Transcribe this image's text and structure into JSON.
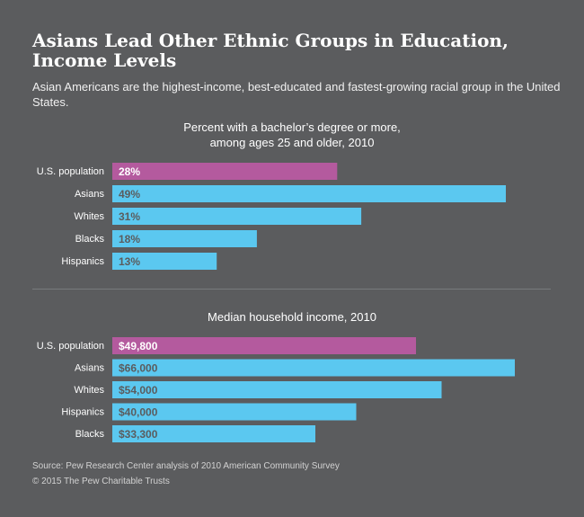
{
  "title_lines": [
    "Asians Lead Other Ethnic Groups in Education,",
    "Income Levels"
  ],
  "subtitle": "Asian Americans are the highest-income, best-educated and fastest-growing racial group in the United States.",
  "source": "Source: Pew Research Center analysis of 2010 American Community Survey",
  "copyright": "© 2015 The Pew Charitable Trusts",
  "colors": {
    "highlight": "#b45a9e",
    "bar": "#5bc8f0",
    "background": "#5b5c5e",
    "bar_text_dark": "#5b5c5e",
    "bar_text_light": "#ffffff"
  },
  "chart_data": [
    {
      "type": "bar",
      "orientation": "horizontal",
      "title_lines": [
        "Percent with a bachelor’s degree or more,",
        "among ages 25 and older, 2010"
      ],
      "categories": [
        "U.S. population",
        "Asians",
        "Whites",
        "Blacks",
        "Hispanics"
      ],
      "values": [
        28,
        49,
        31,
        18,
        13
      ],
      "labels": [
        "28%",
        "49%",
        "31%",
        "18%",
        "13%"
      ],
      "unit": "percent",
      "xlim": [
        0,
        49
      ],
      "highlight_index": 0
    },
    {
      "type": "bar",
      "orientation": "horizontal",
      "title_lines": [
        "Median household income, 2010"
      ],
      "categories": [
        "U.S. population",
        "Asians",
        "Whites",
        "Hispanics",
        "Blacks"
      ],
      "values": [
        49800,
        66000,
        54000,
        40000,
        33300
      ],
      "labels": [
        "$49,800",
        "$66,000",
        "$54,000",
        "$40,000",
        "$33,300"
      ],
      "unit": "dollars",
      "xlim": [
        0,
        66000
      ],
      "highlight_index": 0
    }
  ]
}
